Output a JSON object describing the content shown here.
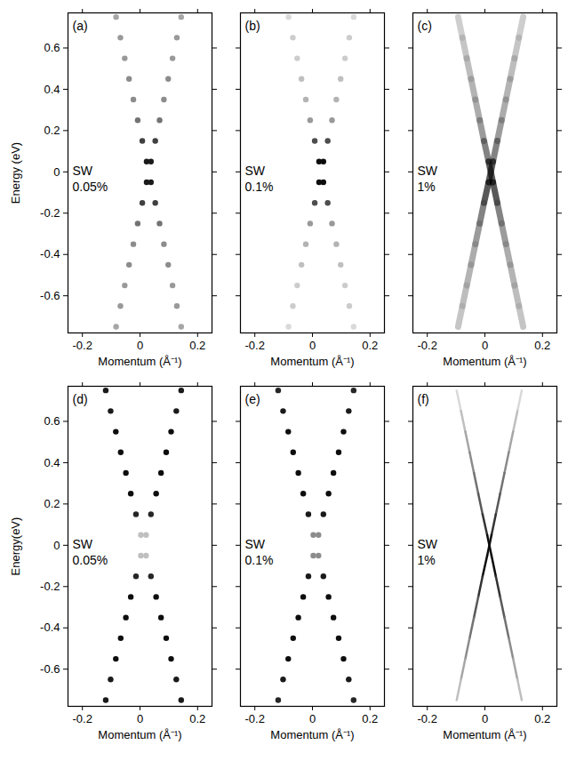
{
  "chart_data": [
    {
      "label": "(a)",
      "annotation": [
        "SW",
        "0.05%"
      ],
      "type": "scatter",
      "marker": "circle",
      "xlabel": "Momentum (Å⁻¹)",
      "ylabel": "Energy (eV)",
      "tick_labels": true,
      "xlim": [
        -0.25,
        0.25
      ],
      "ylim": [
        -0.78,
        0.77
      ],
      "xticks": [
        -0.2,
        0,
        0.2
      ],
      "yticks": [
        -0.6,
        -0.4,
        -0.2,
        0,
        0.2,
        0.4,
        0.6
      ],
      "energy": [
        0.75,
        0.65,
        0.55,
        0.45,
        0.35,
        0.25,
        0.15,
        0.05,
        -0.05,
        -0.15,
        -0.25,
        -0.35,
        -0.45,
        -0.55,
        -0.65,
        -0.75
      ],
      "branches": [
        {
          "momentum": [
            -0.083,
            -0.068,
            -0.053,
            -0.038,
            -0.023,
            -0.008,
            0.008,
            0.023,
            0.038,
            0.053,
            0.068,
            0.083,
            0.098,
            0.113,
            0.128,
            0.143
          ],
          "intensity": [
            0.35,
            0.4,
            0.4,
            0.45,
            0.45,
            0.55,
            0.75,
            0.9,
            0.9,
            0.75,
            0.55,
            0.45,
            0.45,
            0.4,
            0.4,
            0.35
          ]
        },
        {
          "momentum": [
            0.143,
            0.128,
            0.113,
            0.098,
            0.083,
            0.068,
            0.053,
            0.038,
            0.023,
            0.008,
            -0.008,
            -0.023,
            -0.038,
            -0.053,
            -0.068,
            -0.083
          ],
          "intensity": [
            0.35,
            0.4,
            0.4,
            0.45,
            0.45,
            0.55,
            0.75,
            0.9,
            0.9,
            0.75,
            0.55,
            0.45,
            0.45,
            0.4,
            0.4,
            0.35
          ]
        }
      ]
    },
    {
      "label": "(b)",
      "annotation": [
        "SW",
        "0.1%"
      ],
      "type": "scatter",
      "marker": "circle",
      "xlabel": "Momentum (Å⁻¹)",
      "tick_labels": "x",
      "xlim": [
        -0.25,
        0.25
      ],
      "ylim": [
        -0.78,
        0.77
      ],
      "xticks": [
        -0.2,
        0,
        0.2
      ],
      "yticks": [
        -0.6,
        -0.4,
        -0.2,
        0,
        0.2,
        0.4,
        0.6
      ],
      "energy": [
        0.75,
        0.65,
        0.55,
        0.45,
        0.35,
        0.25,
        0.15,
        0.05,
        -0.05,
        -0.15,
        -0.25,
        -0.35,
        -0.45,
        -0.55,
        -0.65,
        -0.75
      ],
      "branches": [
        {
          "momentum": [
            -0.083,
            -0.068,
            -0.053,
            -0.038,
            -0.023,
            -0.008,
            0.008,
            0.023,
            0.038,
            0.053,
            0.068,
            0.083,
            0.098,
            0.113,
            0.128,
            0.143
          ],
          "intensity": [
            0.15,
            0.2,
            0.2,
            0.25,
            0.3,
            0.4,
            0.7,
            0.95,
            0.95,
            0.7,
            0.4,
            0.3,
            0.25,
            0.2,
            0.2,
            0.15
          ]
        },
        {
          "momentum": [
            0.143,
            0.128,
            0.113,
            0.098,
            0.083,
            0.068,
            0.053,
            0.038,
            0.023,
            0.008,
            -0.008,
            -0.023,
            -0.038,
            -0.053,
            -0.068,
            -0.083
          ],
          "intensity": [
            0.15,
            0.2,
            0.2,
            0.25,
            0.3,
            0.4,
            0.7,
            0.95,
            0.95,
            0.7,
            0.4,
            0.3,
            0.25,
            0.2,
            0.2,
            0.15
          ]
        }
      ]
    },
    {
      "label": "(c)",
      "annotation": [
        "SW",
        "1%"
      ],
      "type": "line",
      "line_style": "blurred",
      "xlabel": "Momentum (Å⁻¹)",
      "tick_labels": "x",
      "xlim": [
        -0.25,
        0.25
      ],
      "ylim": [
        -0.78,
        0.77
      ],
      "xticks": [
        -0.2,
        0,
        0.2
      ],
      "yticks": [
        -0.6,
        -0.4,
        -0.2,
        0,
        0.2,
        0.4,
        0.6
      ],
      "energy": [
        0.75,
        0.65,
        0.55,
        0.45,
        0.35,
        0.25,
        0.15,
        0.05,
        -0.05,
        -0.15,
        -0.25,
        -0.35,
        -0.45,
        -0.55,
        -0.65,
        -0.75
      ],
      "branches": [
        {
          "momentum": [
            -0.093,
            -0.078,
            -0.063,
            -0.048,
            -0.033,
            -0.018,
            -0.003,
            0.013,
            0.028,
            0.043,
            0.058,
            0.073,
            0.088,
            0.103,
            0.118,
            0.133
          ],
          "intensity": [
            0.3,
            0.35,
            0.4,
            0.45,
            0.5,
            0.6,
            0.75,
            1,
            1,
            0.75,
            0.6,
            0.5,
            0.45,
            0.4,
            0.35,
            0.3
          ]
        },
        {
          "momentum": [
            0.133,
            0.118,
            0.103,
            0.088,
            0.073,
            0.058,
            0.043,
            0.028,
            0.013,
            -0.003,
            -0.018,
            -0.033,
            -0.048,
            -0.063,
            -0.078,
            -0.093
          ],
          "intensity": [
            0.3,
            0.35,
            0.4,
            0.45,
            0.5,
            0.6,
            0.75,
            1,
            1,
            0.75,
            0.6,
            0.5,
            0.45,
            0.4,
            0.35,
            0.3
          ]
        }
      ]
    },
    {
      "label": "(d)",
      "annotation": [
        "SW",
        "0.05%"
      ],
      "type": "scatter",
      "marker": "circle",
      "xlabel": "Momentum (Å⁻¹)",
      "ylabel": "Energy(eV)",
      "tick_labels": true,
      "xlim": [
        -0.25,
        0.25
      ],
      "ylim": [
        -0.78,
        0.77
      ],
      "xticks": [
        -0.2,
        0,
        0.2
      ],
      "yticks": [
        -0.6,
        -0.4,
        -0.2,
        0,
        0.2,
        0.4,
        0.6
      ],
      "energy": [
        0.75,
        0.65,
        0.55,
        0.45,
        0.35,
        0.25,
        0.15,
        0.05,
        -0.05,
        -0.15,
        -0.25,
        -0.35,
        -0.45,
        -0.55,
        -0.65,
        -0.75
      ],
      "branches": [
        {
          "momentum": [
            -0.119,
            -0.102,
            -0.084,
            -0.067,
            -0.049,
            -0.032,
            -0.014,
            0.003,
            0.021,
            0.038,
            0.056,
            0.073,
            0.091,
            0.108,
            0.126,
            0.143
          ],
          "intensity": [
            0.9,
            0.9,
            0.95,
            0.95,
            0.95,
            0.95,
            0.85,
            0.25,
            0.25,
            0.85,
            0.95,
            0.95,
            0.95,
            0.95,
            0.9,
            0.9
          ]
        },
        {
          "momentum": [
            0.143,
            0.126,
            0.108,
            0.091,
            0.073,
            0.056,
            0.038,
            0.021,
            0.003,
            -0.014,
            -0.032,
            -0.049,
            -0.067,
            -0.084,
            -0.102,
            -0.119
          ],
          "intensity": [
            0.9,
            0.9,
            0.95,
            0.95,
            0.95,
            0.95,
            0.85,
            0.25,
            0.25,
            0.85,
            0.95,
            0.95,
            0.95,
            0.95,
            0.9,
            0.9
          ]
        }
      ]
    },
    {
      "label": "(e)",
      "annotation": [
        "SW",
        "0.1%"
      ],
      "type": "scatter",
      "marker": "circle",
      "xlabel": "Momentum (Å⁻¹)",
      "tick_labels": "x",
      "xlim": [
        -0.25,
        0.25
      ],
      "ylim": [
        -0.78,
        0.77
      ],
      "xticks": [
        -0.2,
        0,
        0.2
      ],
      "yticks": [
        -0.6,
        -0.4,
        -0.2,
        0,
        0.2,
        0.4,
        0.6
      ],
      "energy": [
        0.75,
        0.65,
        0.55,
        0.45,
        0.35,
        0.25,
        0.15,
        0.05,
        -0.05,
        -0.15,
        -0.25,
        -0.35,
        -0.45,
        -0.55,
        -0.65,
        -0.75
      ],
      "branches": [
        {
          "momentum": [
            -0.119,
            -0.102,
            -0.084,
            -0.067,
            -0.049,
            -0.032,
            -0.014,
            0.003,
            0.021,
            0.038,
            0.056,
            0.073,
            0.091,
            0.108,
            0.126,
            0.143
          ],
          "intensity": [
            0.85,
            0.9,
            0.95,
            0.95,
            0.95,
            0.95,
            0.9,
            0.45,
            0.45,
            0.9,
            0.95,
            0.95,
            0.95,
            0.95,
            0.9,
            0.85
          ]
        },
        {
          "momentum": [
            0.143,
            0.126,
            0.108,
            0.091,
            0.073,
            0.056,
            0.038,
            0.021,
            0.003,
            -0.014,
            -0.032,
            -0.049,
            -0.067,
            -0.084,
            -0.102,
            -0.119
          ],
          "intensity": [
            0.85,
            0.9,
            0.95,
            0.95,
            0.95,
            0.95,
            0.9,
            0.45,
            0.45,
            0.9,
            0.95,
            0.95,
            0.95,
            0.95,
            0.9,
            0.85
          ]
        }
      ]
    },
    {
      "label": "(f)",
      "annotation": [
        "SW",
        "1%"
      ],
      "type": "line",
      "line_style": "solid",
      "xlabel": "Momentum (Å⁻¹)",
      "tick_labels": "x",
      "xlim": [
        -0.25,
        0.25
      ],
      "ylim": [
        -0.78,
        0.77
      ],
      "xticks": [
        -0.2,
        0,
        0.2
      ],
      "yticks": [
        -0.6,
        -0.4,
        -0.2,
        0,
        0.2,
        0.4,
        0.6
      ],
      "energy": [
        0.75,
        0.65,
        0.55,
        0.45,
        0.35,
        0.25,
        0.15,
        0.05,
        -0.05,
        -0.15,
        -0.25,
        -0.35,
        -0.45,
        -0.55,
        -0.65,
        -0.75
      ],
      "branches": [
        {
          "momentum": [
            -0.098,
            -0.083,
            -0.068,
            -0.053,
            -0.038,
            -0.023,
            -0.008,
            0.008,
            0.023,
            0.038,
            0.053,
            0.068,
            0.083,
            0.098,
            0.113,
            0.128
          ],
          "intensity": [
            0.15,
            0.25,
            0.35,
            0.45,
            0.55,
            0.65,
            0.8,
            0.95,
            0.95,
            0.8,
            0.65,
            0.55,
            0.45,
            0.35,
            0.25,
            0.15
          ]
        },
        {
          "momentum": [
            0.128,
            0.113,
            0.098,
            0.083,
            0.068,
            0.053,
            0.038,
            0.023,
            0.008,
            -0.008,
            -0.023,
            -0.038,
            -0.053,
            -0.068,
            -0.083,
            -0.098
          ],
          "intensity": [
            0.15,
            0.25,
            0.35,
            0.45,
            0.55,
            0.65,
            0.8,
            0.95,
            0.95,
            0.8,
            0.65,
            0.55,
            0.45,
            0.35,
            0.25,
            0.15
          ]
        }
      ]
    }
  ]
}
